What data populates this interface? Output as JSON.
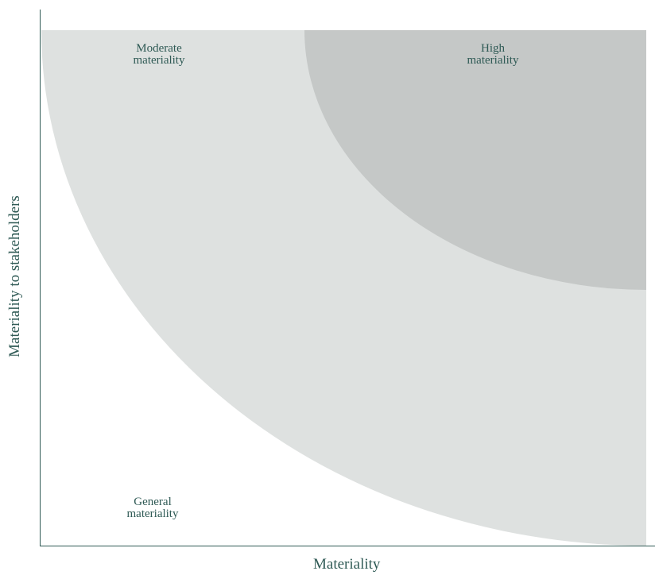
{
  "axes": {
    "x_label": "Materiality",
    "y_label": "Materiality to stakeholders",
    "axis_color": "#2f5a55"
  },
  "zones": [
    {
      "id": "moderate",
      "lines": [
        "Moderate",
        "materiality"
      ],
      "fill": "#dee1e0"
    },
    {
      "id": "high",
      "lines": [
        "High",
        "materiality"
      ],
      "fill": "#c5c8c7"
    },
    {
      "id": "general",
      "lines": [
        "General",
        "materiality"
      ],
      "fill": "#ffffff"
    }
  ],
  "text_color": "#2f5a55"
}
